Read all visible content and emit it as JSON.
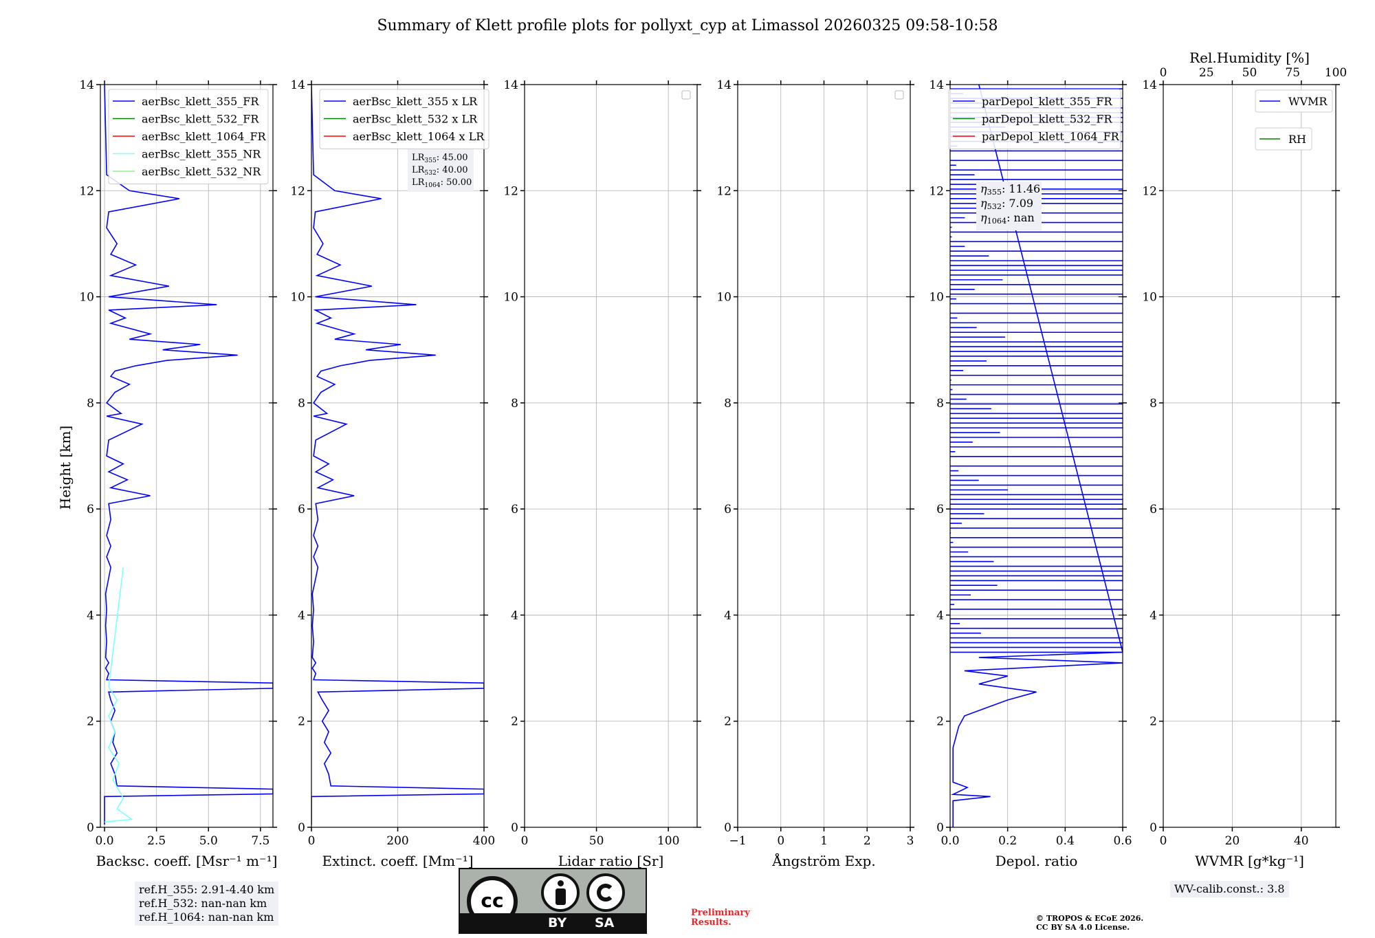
{
  "title": "Summary of Klett profile plots for pollyxt_cyp at Limassol 20260325 09:58-10:58",
  "ylabel": "Height [km]",
  "ylim": [
    0,
    14
  ],
  "yticks": [
    0,
    2,
    4,
    6,
    8,
    10,
    12,
    14
  ],
  "info": {
    "refH": [
      "ref.H_355: 2.91-4.40 km",
      "ref.H_532: nan-nan km",
      "ref.H_1064: nan-nan km"
    ],
    "wv_calib": "WV-calib.const.: 3.8",
    "preliminary": [
      "Preliminary",
      "Results."
    ],
    "copyright": [
      "© TROPOS & ECoE 2026.",
      "CC BY SA 4.0 License."
    ],
    "cc_by": "BY",
    "cc_sa": "SA"
  },
  "panels": [
    {
      "id": "backscatter",
      "xlabel": "Backsc. coeff. [Msr⁻¹ m⁻¹]",
      "xlim": [
        -0.2,
        8.1
      ],
      "xticks": [
        0,
        2.5,
        5,
        7.5
      ],
      "xtick_labels": [
        "0.0",
        "2.5",
        "5.0",
        "7.5"
      ],
      "legend": [
        "aerBsc_klett_355_FR",
        "aerBsc_klett_532_FR",
        "aerBsc_klett_1064_FR",
        "aerBsc_klett_355_NR",
        "aerBsc_klett_532_NR"
      ],
      "legend_colors": [
        "#0000ff",
        "#008000",
        "#ff0000",
        "#7fffff",
        "#90ee90"
      ]
    },
    {
      "id": "extinction",
      "xlabel": "Extinct. coeff. [Mm⁻¹]",
      "xlim": [
        0,
        400
      ],
      "xticks": [
        0,
        200,
        400
      ],
      "xtick_labels": [
        "0",
        "200",
        "400"
      ],
      "legend": [
        "aerBsc_klett_355 x LR",
        "aerBsc_klett_532 x LR",
        "aerBsc_klett_1064 x LR"
      ],
      "legend_colors": [
        "#0000ff",
        "#008000",
        "#ff0000"
      ],
      "annotation": [
        {
          "sym": "LR",
          "sub": "355",
          "val": ": 45.00"
        },
        {
          "sym": "LR",
          "sub": "532",
          "val": ": 40.00"
        },
        {
          "sym": "LR",
          "sub": "1064",
          "val": ": 50.00"
        }
      ]
    },
    {
      "id": "lidar-ratio",
      "xlabel": "Lidar ratio [Sr]",
      "xlim": [
        0,
        120
      ],
      "xticks": [
        0,
        50,
        100
      ],
      "xtick_labels": [
        "0",
        "50",
        "100"
      ]
    },
    {
      "id": "angstrom",
      "xlabel": "Ångström Exp.",
      "xlim": [
        -1,
        3
      ],
      "xticks": [
        -1,
        0,
        1,
        2,
        3
      ],
      "xtick_labels": [
        "−1",
        "0",
        "1",
        "2",
        "3"
      ]
    },
    {
      "id": "depol",
      "xlabel": "Depol. ratio",
      "xlim": [
        0,
        0.6
      ],
      "xticks": [
        0,
        0.2,
        0.4,
        0.6
      ],
      "xtick_labels": [
        "0.0",
        "0.2",
        "0.4",
        "0.6"
      ],
      "legend": [
        "parDepol_klett_355_FR",
        "parDepol_klett_532_FR",
        "parDepol_klett_1064_FR"
      ],
      "legend_colors": [
        "#0000ff",
        "#008000",
        "#ff0000"
      ],
      "annotation": [
        {
          "sym": "η",
          "sub": "355",
          "val": ": 11.46"
        },
        {
          "sym": "η",
          "sub": "532",
          "val": ": 7.09"
        },
        {
          "sym": "η",
          "sub": "1064",
          "val": ": nan"
        }
      ]
    },
    {
      "id": "wvmr",
      "xlabel": "WVMR [g*kg⁻¹]",
      "xlim": [
        0,
        50
      ],
      "xticks": [
        0,
        20,
        40
      ],
      "xtick_labels": [
        "0",
        "20",
        "40"
      ],
      "top_xlabel": "Rel.Humidity [%]",
      "top_xlim": [
        0,
        100
      ],
      "top_xticks": [
        0,
        25,
        50,
        75,
        100
      ],
      "top_xtick_labels": [
        "0",
        "25",
        "50",
        "75",
        "100"
      ],
      "legend": [
        "WVMR",
        "RH"
      ],
      "legend_colors": [
        "#0000ff",
        "#008000"
      ]
    }
  ],
  "chart_data": {
    "type": "line",
    "title": "Summary of Klett profile plots for pollyxt_cyp at Limassol 20260325 09:58-10:58",
    "ylabel": "Height [km]",
    "ylim": [
      0,
      14
    ],
    "series": [
      {
        "name": "aerBsc_klett_355_FR",
        "panel": "backscatter",
        "color": "#0000ff",
        "points": [
          [
            0.0,
            0.05
          ],
          [
            0.0,
            0.58
          ],
          [
            8.1,
            0.63
          ],
          [
            8.1,
            0.72
          ],
          [
            0.6,
            0.78
          ],
          [
            0.5,
            1.0
          ],
          [
            0.3,
            1.2
          ],
          [
            0.6,
            1.4
          ],
          [
            0.4,
            1.6
          ],
          [
            0.5,
            1.8
          ],
          [
            0.3,
            2.0
          ],
          [
            0.5,
            2.2
          ],
          [
            0.3,
            2.4
          ],
          [
            0.2,
            2.55
          ],
          [
            8.1,
            2.62
          ],
          [
            8.1,
            2.72
          ],
          [
            0.1,
            2.78
          ],
          [
            0.2,
            2.9
          ],
          [
            0.05,
            3.0
          ],
          [
            0.2,
            3.1
          ],
          [
            0.05,
            3.2
          ],
          [
            0.1,
            3.5
          ],
          [
            0.05,
            3.8
          ],
          [
            0.1,
            4.1
          ],
          [
            0.05,
            4.4
          ],
          [
            0.2,
            4.7
          ],
          [
            0.3,
            4.9
          ],
          [
            0.1,
            5.1
          ],
          [
            0.3,
            5.3
          ],
          [
            0.1,
            5.5
          ],
          [
            0.3,
            5.8
          ],
          [
            0.2,
            6.1
          ],
          [
            2.2,
            6.25
          ],
          [
            0.3,
            6.4
          ],
          [
            1.1,
            6.55
          ],
          [
            0.2,
            6.7
          ],
          [
            0.9,
            6.85
          ],
          [
            0.1,
            7.0
          ],
          [
            0.2,
            7.3
          ],
          [
            1.8,
            7.6
          ],
          [
            0.1,
            7.75
          ],
          [
            0.8,
            7.8
          ],
          [
            0.1,
            8.0
          ],
          [
            0.5,
            8.2
          ],
          [
            1.2,
            8.35
          ],
          [
            0.3,
            8.5
          ],
          [
            0.5,
            8.6
          ],
          [
            1.5,
            8.7
          ],
          [
            3.0,
            8.8
          ],
          [
            6.4,
            8.9
          ],
          [
            2.8,
            9.0
          ],
          [
            4.6,
            9.1
          ],
          [
            1.2,
            9.2
          ],
          [
            2.2,
            9.3
          ],
          [
            0.3,
            9.5
          ],
          [
            1.0,
            9.6
          ],
          [
            0.2,
            9.75
          ],
          [
            5.4,
            9.85
          ],
          [
            0.2,
            10.0
          ],
          [
            3.1,
            10.2
          ],
          [
            0.3,
            10.4
          ],
          [
            1.5,
            10.6
          ],
          [
            0.3,
            10.8
          ],
          [
            0.6,
            11.0
          ],
          [
            0.1,
            11.3
          ],
          [
            0.2,
            11.6
          ],
          [
            3.6,
            11.85
          ],
          [
            1.2,
            12.0
          ],
          [
            0.1,
            12.3
          ],
          [
            0.0,
            14.0
          ]
        ]
      },
      {
        "name": "aerBsc_klett_355_NR",
        "panel": "backscatter",
        "color": "#7fffff",
        "points": [
          [
            0.0,
            0.1
          ],
          [
            1.3,
            0.15
          ],
          [
            0.6,
            0.35
          ],
          [
            0.9,
            0.55
          ],
          [
            0.4,
            0.9
          ],
          [
            0.7,
            1.2
          ],
          [
            0.2,
            1.5
          ],
          [
            0.5,
            1.8
          ],
          [
            0.2,
            2.1
          ],
          [
            0.6,
            2.4
          ],
          [
            0.2,
            2.65
          ],
          [
            0.9,
            4.9
          ]
        ]
      },
      {
        "name": "aerBsc_klett_355 x LR",
        "panel": "extinction",
        "color": "#0000ff",
        "points": [
          [
            0,
            0.05
          ],
          [
            0,
            0.58
          ],
          [
            400,
            0.63
          ],
          [
            400,
            0.72
          ],
          [
            45,
            0.78
          ],
          [
            40,
            1.0
          ],
          [
            30,
            1.2
          ],
          [
            45,
            1.4
          ],
          [
            30,
            1.6
          ],
          [
            40,
            1.8
          ],
          [
            25,
            2.0
          ],
          [
            40,
            2.2
          ],
          [
            25,
            2.4
          ],
          [
            15,
            2.55
          ],
          [
            400,
            2.62
          ],
          [
            400,
            2.72
          ],
          [
            5,
            2.78
          ],
          [
            10,
            2.9
          ],
          [
            2,
            3.0
          ],
          [
            10,
            3.1
          ],
          [
            2,
            3.2
          ],
          [
            5,
            3.5
          ],
          [
            2,
            3.8
          ],
          [
            5,
            4.1
          ],
          [
            2,
            4.4
          ],
          [
            10,
            4.7
          ],
          [
            15,
            4.9
          ],
          [
            5,
            5.1
          ],
          [
            15,
            5.3
          ],
          [
            5,
            5.5
          ],
          [
            15,
            5.8
          ],
          [
            10,
            6.1
          ],
          [
            99,
            6.25
          ],
          [
            15,
            6.4
          ],
          [
            50,
            6.55
          ],
          [
            10,
            6.7
          ],
          [
            40,
            6.85
          ],
          [
            5,
            7.0
          ],
          [
            10,
            7.3
          ],
          [
            81,
            7.6
          ],
          [
            5,
            7.75
          ],
          [
            36,
            7.8
          ],
          [
            5,
            8.0
          ],
          [
            22,
            8.2
          ],
          [
            54,
            8.35
          ],
          [
            13,
            8.5
          ],
          [
            22,
            8.6
          ],
          [
            67,
            8.7
          ],
          [
            135,
            8.8
          ],
          [
            288,
            8.9
          ],
          [
            126,
            9.0
          ],
          [
            207,
            9.1
          ],
          [
            54,
            9.2
          ],
          [
            99,
            9.3
          ],
          [
            13,
            9.5
          ],
          [
            45,
            9.6
          ],
          [
            9,
            9.75
          ],
          [
            243,
            9.85
          ],
          [
            9,
            10.0
          ],
          [
            140,
            10.2
          ],
          [
            13,
            10.4
          ],
          [
            67,
            10.6
          ],
          [
            13,
            10.8
          ],
          [
            27,
            11.0
          ],
          [
            5,
            11.3
          ],
          [
            9,
            11.6
          ],
          [
            162,
            11.85
          ],
          [
            54,
            12.0
          ],
          [
            5,
            12.3
          ],
          [
            0,
            14.0
          ]
        ]
      },
      {
        "name": "parDepol_klett_355_FR",
        "panel": "depol",
        "color": "#0000ff",
        "points": [
          [
            0.01,
            0.0
          ],
          [
            0.01,
            0.5
          ],
          [
            0.14,
            0.58
          ],
          [
            0.01,
            0.62
          ],
          [
            0.06,
            0.75
          ],
          [
            0.01,
            0.85
          ],
          [
            0.01,
            1.5
          ],
          [
            0.03,
            1.9
          ],
          [
            0.05,
            2.1
          ],
          [
            0.1,
            2.2
          ],
          [
            0.2,
            2.4
          ],
          [
            0.3,
            2.55
          ],
          [
            0.1,
            2.7
          ],
          [
            0.2,
            2.85
          ],
          [
            0.05,
            2.95
          ],
          [
            0.6,
            3.1
          ],
          [
            0.1,
            3.2
          ],
          [
            0.6,
            3.3
          ],
          [
            0.1,
            14.0
          ]
        ]
      },
      {
        "name": "WVMR",
        "panel": "wvmr",
        "color": "#0000ff",
        "points": []
      },
      {
        "name": "RH",
        "panel": "wvmr",
        "color": "#008000",
        "points": []
      }
    ]
  }
}
